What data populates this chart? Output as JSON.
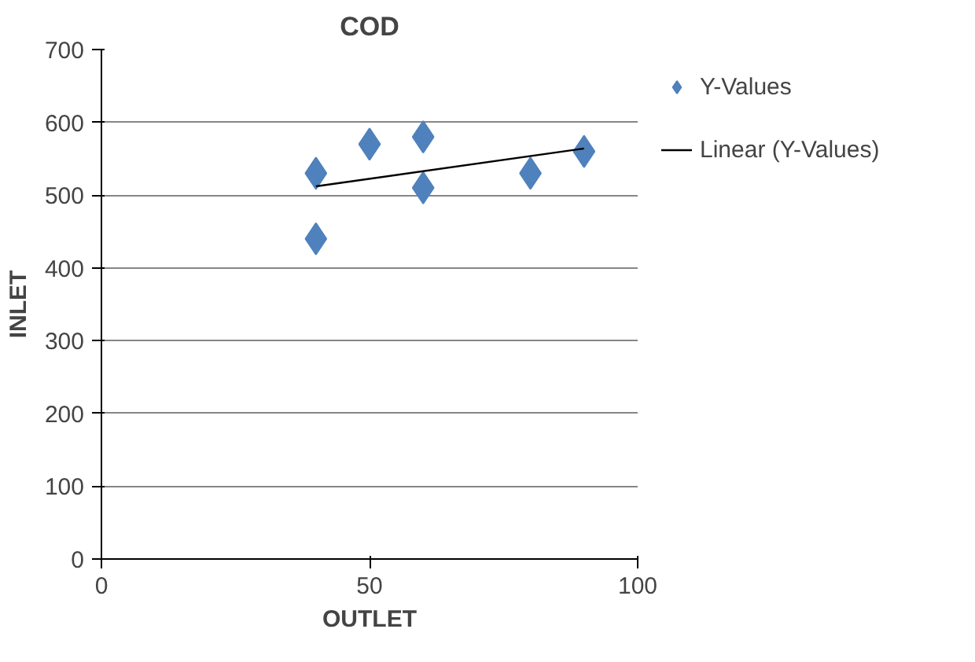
{
  "chart_data": {
    "type": "scatter",
    "title": "COD",
    "xlabel": "OUTLET",
    "ylabel": "INLET",
    "x": [
      40,
      40,
      50,
      60,
      60,
      80,
      90
    ],
    "series": [
      {
        "name": "Y-Values",
        "color": "#4f81bd",
        "values": [
          530,
          440,
          570,
          580,
          510,
          530,
          560
        ],
        "marker": "diamond"
      },
      {
        "name": "Linear (Y-Values)",
        "type": "line",
        "color": "#000000",
        "x": [
          40,
          90
        ],
        "values": [
          512,
          564
        ],
        "marker": "none"
      }
    ],
    "xlim": [
      0,
      100
    ],
    "ylim": [
      0,
      700
    ],
    "xticks": [
      0,
      50,
      100
    ],
    "yticks": [
      0,
      100,
      200,
      300,
      400,
      500,
      600,
      700
    ],
    "grid": "y",
    "legend": "right"
  }
}
